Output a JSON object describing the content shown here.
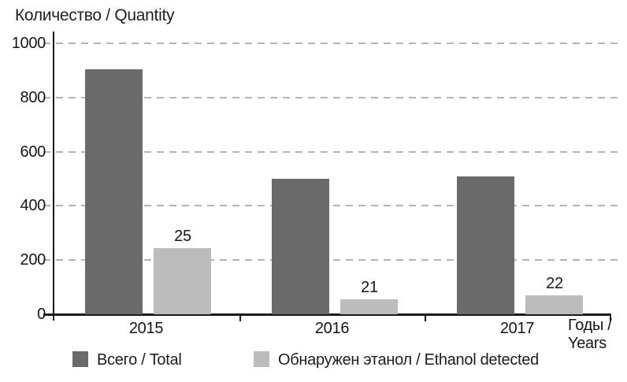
{
  "title": "Количество / Quantity",
  "x_axis_title": {
    "line1": "Годы /",
    "line2": "Years"
  },
  "chart_data": {
    "type": "bar",
    "title": "Количество / Quantity",
    "ylabel": "Количество / Quantity",
    "xlabel": "Годы / Years",
    "categories": [
      "2015",
      "2016",
      "2017"
    ],
    "series": [
      {
        "name": "Всего / Total",
        "color": "#6a6a6a",
        "values": [
          905,
          500,
          510
        ]
      },
      {
        "name": "Обнаружен этанол / Ethanol detected",
        "color": "#bcbcbc",
        "values": [
          245,
          55,
          70
        ],
        "data_labels": [
          "25",
          "21",
          "22"
        ]
      }
    ],
    "ylim": [
      0,
      1000
    ],
    "y_ticks": [
      0,
      200,
      400,
      600,
      800,
      1000
    ],
    "grid": "horizontal-dashed",
    "legend_position": "bottom"
  },
  "colors": {
    "axis": "#1a1a1a",
    "gridline": "#b3b3b3",
    "text": "#15151d",
    "bar_total": "#6a6a6a",
    "bar_ethanol": "#bcbcbc"
  }
}
